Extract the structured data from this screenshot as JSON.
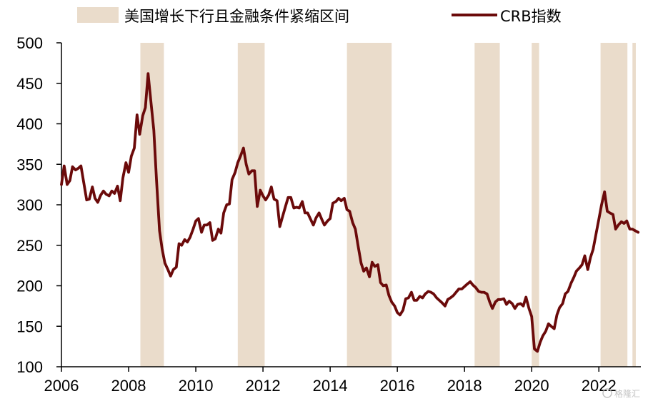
{
  "chart_data": {
    "type": "line",
    "title": "",
    "xlabel": "",
    "ylabel": "",
    "xlim": [
      2006,
      2023.25
    ],
    "ylim": [
      100,
      500
    ],
    "y_ticks": [
      100,
      150,
      200,
      250,
      300,
      350,
      400,
      450,
      500
    ],
    "x_ticks": [
      2006,
      2008,
      2010,
      2012,
      2014,
      2016,
      2018,
      2020,
      2022
    ],
    "y_tick_labels": [
      "100",
      "150",
      "200",
      "250",
      "300",
      "350",
      "400",
      "450",
      "500"
    ],
    "x_tick_labels": [
      "2006",
      "2008",
      "2010",
      "2012",
      "2014",
      "2016",
      "2018",
      "2020",
      "2022"
    ],
    "grid": false,
    "legend_position": "top",
    "legend": {
      "band_label": "美国增长下行且金融条件紧缩区间",
      "line_label": "CRB指数"
    },
    "colors": {
      "line": "#6b0a0a",
      "band": "#eadccb",
      "axis": "#000000"
    },
    "shaded_periods": [
      {
        "start": 2008.35,
        "end": 2009.05
      },
      {
        "start": 2011.25,
        "end": 2012.05
      },
      {
        "start": 2014.5,
        "end": 2015.83
      },
      {
        "start": 2018.3,
        "end": 2019.05
      },
      {
        "start": 2020.0,
        "end": 2020.22
      },
      {
        "start": 2022.05,
        "end": 2022.85
      },
      {
        "start": 2023.0,
        "end": 2023.1
      }
    ],
    "series": [
      {
        "name": "CRB指数",
        "x": [
          2006.0,
          2006.08,
          2006.17,
          2006.25,
          2006.33,
          2006.42,
          2006.5,
          2006.58,
          2006.67,
          2006.75,
          2006.83,
          2006.92,
          2007.0,
          2007.08,
          2007.17,
          2007.25,
          2007.33,
          2007.42,
          2007.5,
          2007.58,
          2007.67,
          2007.75,
          2007.83,
          2007.92,
          2008.0,
          2008.08,
          2008.17,
          2008.25,
          2008.33,
          2008.42,
          2008.5,
          2008.58,
          2008.67,
          2008.75,
          2008.83,
          2008.92,
          2009.0,
          2009.08,
          2009.17,
          2009.25,
          2009.33,
          2009.42,
          2009.5,
          2009.58,
          2009.67,
          2009.75,
          2009.83,
          2009.92,
          2010.0,
          2010.08,
          2010.17,
          2010.25,
          2010.33,
          2010.42,
          2010.5,
          2010.58,
          2010.67,
          2010.75,
          2010.83,
          2010.92,
          2011.0,
          2011.08,
          2011.17,
          2011.25,
          2011.33,
          2011.42,
          2011.5,
          2011.58,
          2011.67,
          2011.75,
          2011.83,
          2011.92,
          2012.0,
          2012.08,
          2012.17,
          2012.25,
          2012.33,
          2012.42,
          2012.5,
          2012.58,
          2012.67,
          2012.75,
          2012.83,
          2012.92,
          2013.0,
          2013.08,
          2013.17,
          2013.25,
          2013.33,
          2013.42,
          2013.5,
          2013.58,
          2013.67,
          2013.75,
          2013.83,
          2013.92,
          2014.0,
          2014.08,
          2014.17,
          2014.25,
          2014.33,
          2014.42,
          2014.5,
          2014.58,
          2014.67,
          2014.75,
          2014.83,
          2014.92,
          2015.0,
          2015.08,
          2015.17,
          2015.25,
          2015.33,
          2015.42,
          2015.5,
          2015.58,
          2015.67,
          2015.75,
          2015.83,
          2015.92,
          2016.0,
          2016.08,
          2016.17,
          2016.25,
          2016.33,
          2016.42,
          2016.5,
          2016.58,
          2016.67,
          2016.75,
          2016.83,
          2016.92,
          2017.0,
          2017.08,
          2017.17,
          2017.25,
          2017.33,
          2017.42,
          2017.5,
          2017.58,
          2017.67,
          2017.75,
          2017.83,
          2017.92,
          2018.0,
          2018.08,
          2018.17,
          2018.25,
          2018.33,
          2018.42,
          2018.5,
          2018.58,
          2018.67,
          2018.75,
          2018.83,
          2018.92,
          2019.0,
          2019.08,
          2019.17,
          2019.25,
          2019.33,
          2019.42,
          2019.5,
          2019.58,
          2019.67,
          2019.75,
          2019.83,
          2019.92,
          2020.0,
          2020.08,
          2020.17,
          2020.25,
          2020.33,
          2020.42,
          2020.5,
          2020.58,
          2020.67,
          2020.75,
          2020.83,
          2020.92,
          2021.0,
          2021.08,
          2021.17,
          2021.25,
          2021.33,
          2021.42,
          2021.5,
          2021.58,
          2021.67,
          2021.75,
          2021.83,
          2021.92,
          2022.0,
          2022.08,
          2022.17,
          2022.25,
          2022.33,
          2022.42,
          2022.5,
          2022.58,
          2022.67,
          2022.75,
          2022.83,
          2022.92,
          2023.0,
          2023.08,
          2023.17
        ],
        "values": [
          325,
          348,
          325,
          330,
          347,
          343,
          345,
          348,
          326,
          306,
          307,
          322,
          308,
          303,
          312,
          317,
          313,
          311,
          317,
          314,
          323,
          305,
          333,
          352,
          340,
          360,
          370,
          411,
          387,
          410,
          420,
          462,
          425,
          392,
          330,
          268,
          245,
          228,
          220,
          212,
          220,
          223,
          252,
          250,
          257,
          254,
          260,
          270,
          280,
          283,
          266,
          275,
          275,
          278,
          256,
          258,
          270,
          265,
          290,
          300,
          301,
          331,
          340,
          352,
          360,
          370,
          350,
          338,
          342,
          342,
          298,
          318,
          311,
          306,
          312,
          322,
          307,
          305,
          273,
          285,
          298,
          309,
          309,
          296,
          297,
          296,
          304,
          290,
          290,
          282,
          275,
          284,
          290,
          282,
          275,
          280,
          283,
          302,
          304,
          308,
          305,
          308,
          294,
          292,
          278,
          270,
          250,
          228,
          218,
          222,
          211,
          229,
          224,
          226,
          204,
          200,
          201,
          188,
          180,
          175,
          167,
          164,
          170,
          184,
          185,
          192,
          182,
          182,
          187,
          185,
          190,
          193,
          192,
          190,
          185,
          182,
          179,
          175,
          183,
          185,
          188,
          192,
          196,
          196,
          199,
          202,
          205,
          201,
          198,
          193,
          192,
          192,
          190,
          180,
          172,
          180,
          183,
          183,
          184,
          177,
          181,
          178,
          172,
          177,
          178,
          175,
          186,
          172,
          162,
          122,
          119,
          130,
          138,
          144,
          153,
          150,
          147,
          164,
          173,
          178,
          190,
          193,
          203,
          210,
          218,
          222,
          226,
          237,
          220,
          235,
          245,
          265,
          282,
          300,
          316,
          292,
          290,
          288,
          270,
          275,
          279,
          277,
          280,
          270,
          270,
          268,
          266
        ]
      }
    ]
  },
  "watermark": "格隆汇"
}
